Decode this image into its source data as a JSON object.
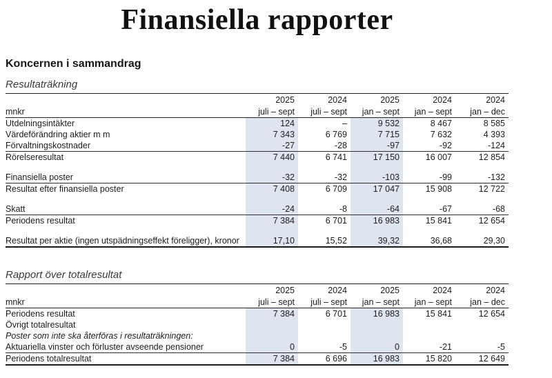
{
  "page": {
    "title": "Finansiella rapporter",
    "section_heading": "Koncernen i sammandrag"
  },
  "colors": {
    "highlight": "#dfe5ef",
    "rule": "#222222",
    "text": "#1c1c1c"
  },
  "columns": [
    {
      "year": "2025",
      "period": "juli – sept",
      "bold": true,
      "highlight": true
    },
    {
      "year": "2024",
      "period": "juli – sept",
      "bold": false,
      "highlight": false
    },
    {
      "year": "2025",
      "period": "jan – sept",
      "bold": true,
      "highlight": true
    },
    {
      "year": "2024",
      "period": "jan – sept",
      "bold": false,
      "highlight": false
    },
    {
      "year": "2024",
      "period": "jan – dec",
      "bold": false,
      "highlight": false
    }
  ],
  "tables": [
    {
      "caption": "Resultaträkning",
      "unit_label": "mnkr",
      "rows": [
        {
          "label": "Utdelningsintäkter",
          "values": [
            "124",
            "–",
            "9 532",
            "8 467",
            "8 585"
          ]
        },
        {
          "label": "Värdeförändring aktier m m",
          "values": [
            "7 343",
            "6 769",
            "7 715",
            "7 632",
            "4 393"
          ]
        },
        {
          "label": "Förvaltningskostnader",
          "values": [
            "-27",
            "-28",
            "-97",
            "-92",
            "-124"
          ]
        },
        {
          "label": "Rörelseresultat",
          "bold": true,
          "rule_above": true,
          "values": [
            "7 440",
            "6 741",
            "17 150",
            "16 007",
            "12 854"
          ]
        },
        {
          "spacer": true
        },
        {
          "label": "Finansiella poster",
          "values": [
            "-32",
            "-32",
            "-103",
            "-99",
            "-132"
          ]
        },
        {
          "label": "Resultat efter finansiella poster",
          "bold": true,
          "rule_above": true,
          "values": [
            "7 408",
            "6 709",
            "17 047",
            "15 908",
            "12 722"
          ]
        },
        {
          "spacer": true
        },
        {
          "label": "Skatt",
          "values": [
            "-24",
            "-8",
            "-64",
            "-67",
            "-68"
          ]
        },
        {
          "label": "Periodens resultat",
          "bold": true,
          "rule_above": true,
          "values": [
            "7 384",
            "6 701",
            "16 983",
            "15 841",
            "12 654"
          ]
        },
        {
          "spacer": true
        },
        {
          "label": "Resultat per aktie (ingen utspädningseffekt föreligger), kronor",
          "values": [
            "17,10",
            "15,52",
            "39,32",
            "36,68",
            "29,30"
          ]
        }
      ]
    },
    {
      "caption": "Rapport över totalresultat",
      "unit_label": "mnkr",
      "rows": [
        {
          "label": "Periodens resultat",
          "values": [
            "7 384",
            "6 701",
            "16 983",
            "15 841",
            "12 654"
          ]
        },
        {
          "label": "Övrigt totalresultat",
          "values": [
            "",
            "",
            "",
            "",
            ""
          ]
        },
        {
          "label": "Poster som inte ska återföras i resultaträkningen:",
          "italic": true,
          "indent": 1,
          "values": [
            "",
            "",
            "",
            "",
            ""
          ]
        },
        {
          "label": "Aktuariella vinster och förluster avseende pensioner",
          "indent": 2,
          "values": [
            "0",
            "-5",
            "0",
            "-21",
            "-5"
          ]
        },
        {
          "label": "Periodens totalresultat",
          "bold": true,
          "rule_above": true,
          "values": [
            "7 384",
            "6 696",
            "16 983",
            "15 820",
            "12 649"
          ]
        }
      ]
    }
  ]
}
